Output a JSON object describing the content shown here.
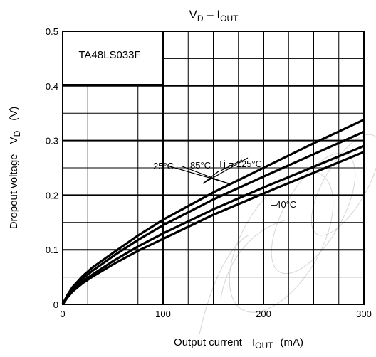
{
  "chart_data": {
    "type": "line",
    "title": {
      "main": "V",
      "main_sub": "D",
      "sep": " – I",
      "sep_sub": "OUT"
    },
    "xlabel": {
      "text": "Output current",
      "sym": "I",
      "sym_sub": "OUT",
      "unit": "(mA)"
    },
    "ylabel": {
      "text": "Dropout voltage",
      "sym": "V",
      "sym_sub": "D",
      "unit": "(V)"
    },
    "xlim": [
      0,
      300
    ],
    "ylim": [
      0,
      0.5
    ],
    "x_ticks": [
      "0",
      "100",
      "200",
      "300"
    ],
    "y_ticks": [
      "0",
      "0.1",
      "0.2",
      "0.3",
      "0.4",
      "0.5"
    ],
    "grid": true,
    "part_label": "TA48LS033F",
    "series": [
      {
        "name": "Tj = 125°C",
        "x": [
          0,
          5,
          10,
          20,
          30,
          50,
          75,
          100,
          150,
          200,
          250,
          300
        ],
        "y": [
          0,
          0.018,
          0.032,
          0.052,
          0.068,
          0.094,
          0.126,
          0.155,
          0.205,
          0.25,
          0.295,
          0.338
        ]
      },
      {
        "name": "85°C",
        "x": [
          0,
          5,
          10,
          20,
          30,
          50,
          75,
          100,
          150,
          200,
          250,
          300
        ],
        "y": [
          0,
          0.016,
          0.029,
          0.047,
          0.062,
          0.088,
          0.118,
          0.145,
          0.192,
          0.234,
          0.275,
          0.316
        ]
      },
      {
        "name": "25°C",
        "x": [
          0,
          5,
          10,
          20,
          30,
          50,
          75,
          100,
          150,
          200,
          250,
          300
        ],
        "y": [
          0,
          0.014,
          0.026,
          0.042,
          0.055,
          0.079,
          0.106,
          0.13,
          0.174,
          0.214,
          0.252,
          0.29
        ]
      },
      {
        "name": "–40°C",
        "x": [
          0,
          5,
          10,
          20,
          30,
          50,
          75,
          100,
          150,
          200,
          250,
          300
        ],
        "y": [
          0,
          0.013,
          0.024,
          0.039,
          0.051,
          0.073,
          0.098,
          0.12,
          0.164,
          0.203,
          0.241,
          0.279
        ]
      }
    ],
    "annotations": [
      "Tj = 125°C",
      "85°C",
      "25°C",
      "–40°C"
    ]
  }
}
